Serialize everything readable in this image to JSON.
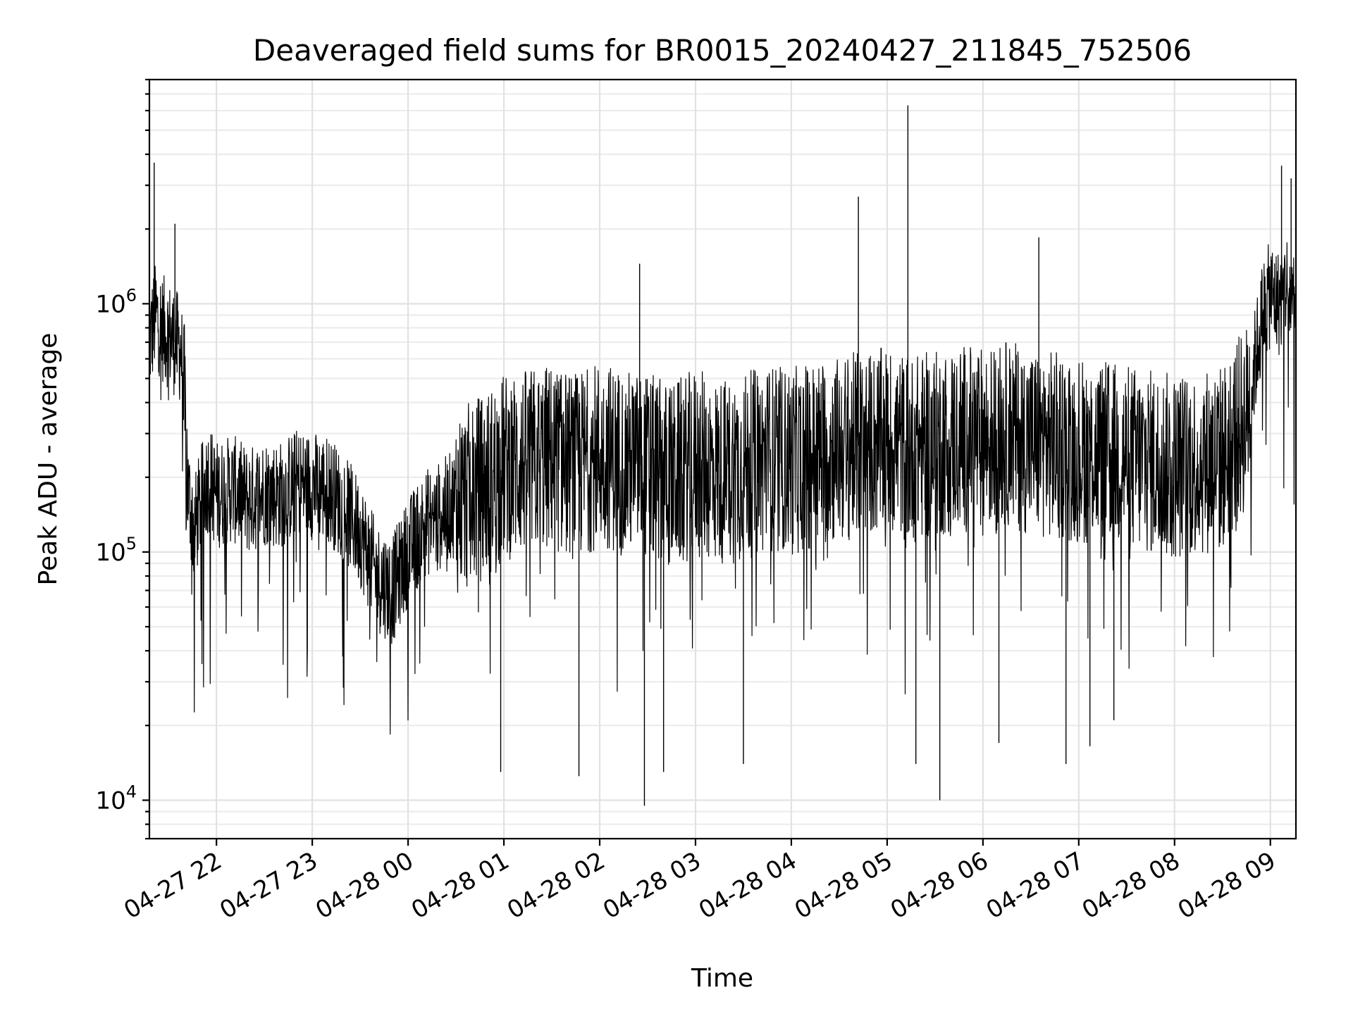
{
  "chart_data": {
    "type": "line",
    "title": "Deaveraged field sums for BR0015_20240427_211845_752506",
    "xlabel": "Time",
    "ylabel": "Peak ADU - average",
    "yscale": "log",
    "ylim": [
      7000,
      8000000
    ],
    "xlim": [
      "2024-04-27 21:18",
      "2024-04-28 09:16"
    ],
    "grid": true,
    "line_color": "#000000",
    "x_ticks": [
      {
        "time": "2024-04-27 22:00",
        "label": "04-27 22"
      },
      {
        "time": "2024-04-27 23:00",
        "label": "04-27 23"
      },
      {
        "time": "2024-04-28 00:00",
        "label": "04-28 00"
      },
      {
        "time": "2024-04-28 01:00",
        "label": "04-28 01"
      },
      {
        "time": "2024-04-28 02:00",
        "label": "04-28 02"
      },
      {
        "time": "2024-04-28 03:00",
        "label": "04-28 03"
      },
      {
        "time": "2024-04-28 04:00",
        "label": "04-28 04"
      },
      {
        "time": "2024-04-28 05:00",
        "label": "04-28 05"
      },
      {
        "time": "2024-04-28 06:00",
        "label": "04-28 06"
      },
      {
        "time": "2024-04-28 07:00",
        "label": "04-28 07"
      },
      {
        "time": "2024-04-28 08:00",
        "label": "04-28 08"
      },
      {
        "time": "2024-04-28 09:00",
        "label": "04-28 09"
      }
    ],
    "y_ticks": [
      {
        "value": 10000,
        "base": "10",
        "exp": "4"
      },
      {
        "value": 100000,
        "base": "10",
        "exp": "5"
      },
      {
        "value": 1000000,
        "base": "10",
        "exp": "6"
      }
    ],
    "series": [
      {
        "points": [
          [
            "2024-04-27 21:18",
            700000
          ],
          [
            "2024-04-27 21:22",
            900000
          ],
          [
            "2024-04-27 21:26",
            800000
          ],
          [
            "2024-04-27 21:30",
            750000
          ],
          [
            "2024-04-27 21:34",
            700000
          ],
          [
            "2024-04-27 21:38",
            650000
          ],
          [
            "2024-04-27 21:42",
            180000
          ],
          [
            "2024-04-27 21:46",
            120000
          ],
          [
            "2024-04-27 21:50",
            160000
          ],
          [
            "2024-04-27 21:55",
            200000
          ],
          [
            "2024-04-27 22:00",
            170000
          ],
          [
            "2024-04-27 22:10",
            180000
          ],
          [
            "2024-04-27 22:20",
            160000
          ],
          [
            "2024-04-27 22:30",
            175000
          ],
          [
            "2024-04-27 22:40",
            170000
          ],
          [
            "2024-04-27 22:50",
            190000
          ],
          [
            "2024-04-27 23:00",
            185000
          ],
          [
            "2024-04-27 23:10",
            180000
          ],
          [
            "2024-04-27 23:20",
            150000
          ],
          [
            "2024-04-27 23:30",
            120000
          ],
          [
            "2024-04-27 23:40",
            80000
          ],
          [
            "2024-04-27 23:50",
            70000
          ],
          [
            "2024-04-28 00:00",
            100000
          ],
          [
            "2024-04-28 00:10",
            130000
          ],
          [
            "2024-04-28 00:20",
            140000
          ],
          [
            "2024-04-28 00:30",
            160000
          ],
          [
            "2024-04-28 00:40",
            170000
          ],
          [
            "2024-04-28 00:50",
            190000
          ],
          [
            "2024-04-28 01:00",
            220000
          ],
          [
            "2024-04-28 01:15",
            230000
          ],
          [
            "2024-04-28 01:30",
            240000
          ],
          [
            "2024-04-28 01:45",
            220000
          ],
          [
            "2024-04-28 02:00",
            250000
          ],
          [
            "2024-04-28 02:15",
            230000
          ],
          [
            "2024-04-28 02:30",
            220000
          ],
          [
            "2024-04-28 02:45",
            200000
          ],
          [
            "2024-04-28 03:00",
            230000
          ],
          [
            "2024-04-28 03:15",
            210000
          ],
          [
            "2024-04-28 03:30",
            220000
          ],
          [
            "2024-04-28 03:45",
            240000
          ],
          [
            "2024-04-28 04:00",
            230000
          ],
          [
            "2024-04-28 04:15",
            250000
          ],
          [
            "2024-04-28 04:30",
            260000
          ],
          [
            "2024-04-28 04:45",
            270000
          ],
          [
            "2024-04-28 05:00",
            280000
          ],
          [
            "2024-04-28 05:15",
            260000
          ],
          [
            "2024-04-28 05:30",
            270000
          ],
          [
            "2024-04-28 05:45",
            290000
          ],
          [
            "2024-04-28 06:00",
            280000
          ],
          [
            "2024-04-28 06:15",
            300000
          ],
          [
            "2024-04-28 06:30",
            280000
          ],
          [
            "2024-04-28 06:45",
            270000
          ],
          [
            "2024-04-28 07:00",
            260000
          ],
          [
            "2024-04-28 07:15",
            250000
          ],
          [
            "2024-04-28 07:30",
            240000
          ],
          [
            "2024-04-28 07:45",
            230000
          ],
          [
            "2024-04-28 08:00",
            220000
          ],
          [
            "2024-04-28 08:15",
            230000
          ],
          [
            "2024-04-28 08:30",
            240000
          ],
          [
            "2024-04-28 08:45",
            350000
          ],
          [
            "2024-04-28 08:55",
            900000
          ],
          [
            "2024-04-28 09:00",
            1100000
          ],
          [
            "2024-04-28 09:05",
            1000000
          ],
          [
            "2024-04-28 09:10",
            1200000
          ],
          [
            "2024-04-28 09:16",
            900000
          ]
        ],
        "spikes_high": [
          [
            "2024-04-27 21:21",
            3700000
          ],
          [
            "2024-04-27 21:34",
            2100000
          ],
          [
            "2024-04-28 02:25",
            1450000
          ],
          [
            "2024-04-28 04:42",
            2700000
          ],
          [
            "2024-04-28 05:13",
            6300000
          ],
          [
            "2024-04-28 06:35",
            1850000
          ],
          [
            "2024-04-28 09:07",
            3600000
          ],
          [
            "2024-04-28 09:13",
            3200000
          ]
        ],
        "spikes_low": [
          [
            "2024-04-28 00:58",
            13000
          ],
          [
            "2024-04-28 01:47",
            12500
          ],
          [
            "2024-04-28 02:28",
            9500
          ],
          [
            "2024-04-28 02:40",
            13000
          ],
          [
            "2024-04-28 03:30",
            14000
          ],
          [
            "2024-04-28 05:18",
            14000
          ],
          [
            "2024-04-28 05:33",
            10000
          ],
          [
            "2024-04-28 06:10",
            17000
          ],
          [
            "2024-04-28 06:52",
            14000
          ],
          [
            "2024-04-28 07:07",
            16500
          ],
          [
            "2024-04-28 07:22",
            21000
          ]
        ]
      }
    ]
  }
}
